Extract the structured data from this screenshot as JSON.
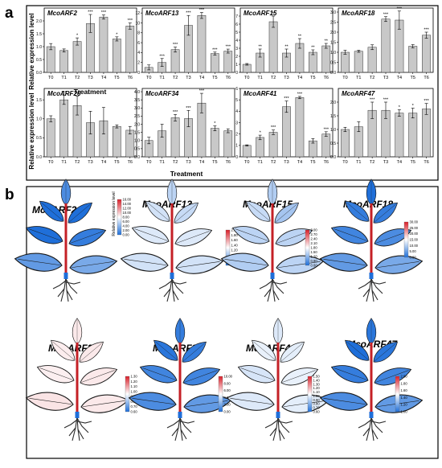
{
  "panel_a": {
    "letter": "a",
    "y_label": "Relative expression level",
    "x_label": "Treatment"
  },
  "panel_b": {
    "letter": "b",
    "legend_label": "Relative expression level"
  },
  "colors": {
    "bar": "#c8c8c8",
    "low": "#1f6fd9",
    "mid": "#ffffff",
    "high": "#d9202a",
    "stem": "#c42026",
    "root": "#2b2b2b"
  },
  "chart_data": [
    {
      "type": "bar",
      "title": "McoARF2",
      "categories": [
        "T0",
        "T1",
        "T2",
        "T3",
        "T4",
        "T5",
        "T6"
      ],
      "values": [
        1.0,
        0.85,
        1.2,
        1.9,
        2.15,
        1.3,
        1.8
      ],
      "errors": [
        0.12,
        0.06,
        0.14,
        0.35,
        0.08,
        0.08,
        0.12
      ],
      "sig": [
        "",
        "",
        "*",
        "***",
        "***",
        "*",
        "***"
      ],
      "ylim": [
        0,
        2.5
      ],
      "yticks": [
        0,
        0.5,
        1.0,
        1.5,
        2.0
      ]
    },
    {
      "type": "bar",
      "title": "McoARF13",
      "categories": [
        "T0",
        "T1",
        "T2",
        "T3",
        "T4",
        "T5",
        "T6"
      ],
      "values": [
        1.0,
        2.0,
        4.6,
        9.5,
        11.5,
        3.8,
        4.3
      ],
      "errors": [
        0.5,
        0.8,
        0.5,
        2.0,
        0.6,
        0.3,
        0.4
      ],
      "sig": [
        "",
        "***",
        "***",
        "***",
        "***",
        "***",
        "***"
      ],
      "ylim": [
        0,
        13
      ],
      "yticks": [
        0,
        2,
        4,
        6,
        8,
        10,
        12
      ]
    },
    {
      "type": "bar",
      "title": "McoARF15",
      "categories": [
        "T0",
        "T1",
        "T2",
        "T3",
        "T4",
        "T5",
        "T6"
      ],
      "values": [
        1.0,
        2.4,
        6.3,
        2.4,
        3.6,
        2.5,
        3.3
      ],
      "errors": [
        0.1,
        0.5,
        0.7,
        0.5,
        0.6,
        0.3,
        0.3
      ],
      "sig": [
        "",
        "**",
        "**",
        "**",
        "**",
        "**",
        "**"
      ],
      "ylim": [
        0,
        8
      ],
      "yticks": [
        0,
        1,
        2,
        3,
        4,
        5,
        6,
        7
      ]
    },
    {
      "type": "bar",
      "title": "McoARF18",
      "categories": [
        "T0",
        "T1",
        "T2",
        "T3",
        "T4",
        "T5",
        "T6"
      ],
      "values": [
        1.0,
        1.05,
        1.25,
        2.65,
        2.6,
        1.3,
        1.85
      ],
      "errors": [
        0.1,
        0.05,
        0.12,
        0.12,
        0.45,
        0.08,
        0.15
      ],
      "sig": [
        "",
        "",
        "",
        "***",
        "***",
        "",
        "***"
      ],
      "ylim": [
        0,
        3.2
      ],
      "yticks": [
        0,
        0.5,
        1.0,
        1.5,
        2.0,
        2.5,
        3.0
      ]
    },
    {
      "type": "bar",
      "title": "McoARF26",
      "categories": [
        "T0",
        "T1",
        "T2",
        "T3",
        "T4",
        "T5",
        "T6"
      ],
      "values": [
        1.0,
        1.5,
        1.35,
        0.9,
        0.95,
        0.8,
        0.7
      ],
      "errors": [
        0.08,
        0.12,
        0.25,
        0.3,
        0.35,
        0.04,
        0.1
      ],
      "sig": [
        "",
        "***",
        "",
        "",
        "",
        "",
        ""
      ],
      "ylim": [
        0,
        1.8
      ],
      "yticks": [
        0,
        0.5,
        1.0,
        1.5
      ]
    },
    {
      "type": "bar",
      "title": "McoARF34",
      "categories": [
        "T0",
        "T1",
        "T2",
        "T3",
        "T4",
        "T5",
        "T6"
      ],
      "values": [
        1.0,
        1.6,
        2.4,
        2.35,
        3.3,
        1.75,
        1.6
      ],
      "errors": [
        0.2,
        0.4,
        0.2,
        0.5,
        0.6,
        0.15,
        0.12
      ],
      "sig": [
        "",
        "",
        "***",
        "***",
        "***",
        "*",
        ""
      ],
      "ylim": [
        0,
        4.2
      ],
      "yticks": [
        0,
        0.5,
        1.0,
        1.5,
        2.0,
        2.5,
        3.0,
        3.5,
        4.0
      ]
    },
    {
      "type": "bar",
      "title": "McoARF41",
      "categories": [
        "T0",
        "T1",
        "T2",
        "T3",
        "T4",
        "T5",
        "T6"
      ],
      "values": [
        1.0,
        1.7,
        2.15,
        4.4,
        5.2,
        1.4,
        2.0
      ],
      "errors": [
        0.05,
        0.2,
        0.2,
        0.5,
        0.1,
        0.2,
        0.2
      ],
      "sig": [
        "",
        "*",
        "***",
        "***",
        "***",
        "",
        "***"
      ],
      "ylim": [
        0,
        6
      ],
      "yticks": [
        0,
        1,
        2,
        3,
        4,
        5,
        6
      ]
    },
    {
      "type": "bar",
      "title": "McoARF47",
      "categories": [
        "T0",
        "T1",
        "T2",
        "T3",
        "T4",
        "T5",
        "T6"
      ],
      "values": [
        1.0,
        1.1,
        1.7,
        1.7,
        1.6,
        1.6,
        1.75
      ],
      "errors": [
        0.08,
        0.18,
        0.3,
        0.3,
        0.12,
        0.18,
        0.2
      ],
      "sig": [
        "",
        "",
        "***",
        "***",
        "*",
        "*",
        "***"
      ],
      "ylim": [
        0,
        2.5
      ],
      "yticks": [
        0,
        0.5,
        1.0,
        1.5,
        2.0
      ]
    }
  ],
  "heatmaps": [
    {
      "title": "McoARF2",
      "levels": [
        0.8,
        1.0,
        1.1,
        1.0,
        0.9,
        0.7,
        0.6
      ],
      "legend_ticks": [
        "16.00",
        "14.00",
        "12.00",
        "10.00",
        "8.00",
        "6.00",
        "4.00",
        "2.00",
        "0.00"
      ]
    },
    {
      "title": "McoARF13",
      "levels": [
        0.3,
        0.2,
        0.25,
        0.15,
        0.15,
        0.2,
        0.2
      ],
      "legend_ticks": [
        "2.00",
        "1.80",
        "1.60",
        "1.40",
        "1.20",
        "1.00",
        "0.80",
        "0.60"
      ]
    },
    {
      "title": "McoARF15",
      "levels": [
        0.35,
        0.25,
        0.4,
        0.3,
        0.3,
        0.35,
        0.3
      ],
      "legend_ticks": [
        "3.00",
        "2.70",
        "2.40",
        "2.10",
        "1.80",
        "1.50",
        "1.20",
        "0.90",
        "0.60"
      ]
    },
    {
      "title": "McoARF18",
      "levels": [
        1.0,
        0.9,
        0.9,
        0.85,
        0.8,
        0.7,
        0.6
      ],
      "legend_ticks": [
        "30.00",
        "25.00",
        "20.00",
        "15.00",
        "10.00",
        "5.00",
        "0.00"
      ]
    },
    {
      "title": "McoARF26",
      "levels": [
        -0.1,
        -0.08,
        -0.1,
        -0.07,
        -0.1,
        -0.12,
        -0.1
      ],
      "legend_ticks": [
        "1.30",
        "1.20",
        "1.10",
        "1.00",
        "0.90",
        "0.80",
        "0.70",
        "0.60"
      ]
    },
    {
      "title": "McoARF34",
      "levels": [
        0.9,
        0.95,
        0.9,
        0.85,
        0.85,
        0.8,
        0.7
      ],
      "legend_ticks": [
        "10.00",
        "8.00",
        "6.00",
        "4.00",
        "2.00",
        "0.00"
      ]
    },
    {
      "title": "McoARF41",
      "levels": [
        0.15,
        0.1,
        0.12,
        0.18,
        0.1,
        0.15,
        0.12
      ],
      "legend_ticks": [
        "1.50",
        "1.40",
        "1.30",
        "1.20",
        "1.10",
        "1.00",
        "0.90",
        "0.80",
        "0.70",
        "0.60"
      ]
    },
    {
      "title": "McoARF47",
      "levels": [
        0.95,
        1.0,
        0.95,
        0.9,
        0.85,
        0.8,
        0.7
      ],
      "legend_ticks": [
        "2.00",
        "1.80",
        "1.60",
        "1.40",
        "1.20",
        "1.00"
      ]
    }
  ]
}
